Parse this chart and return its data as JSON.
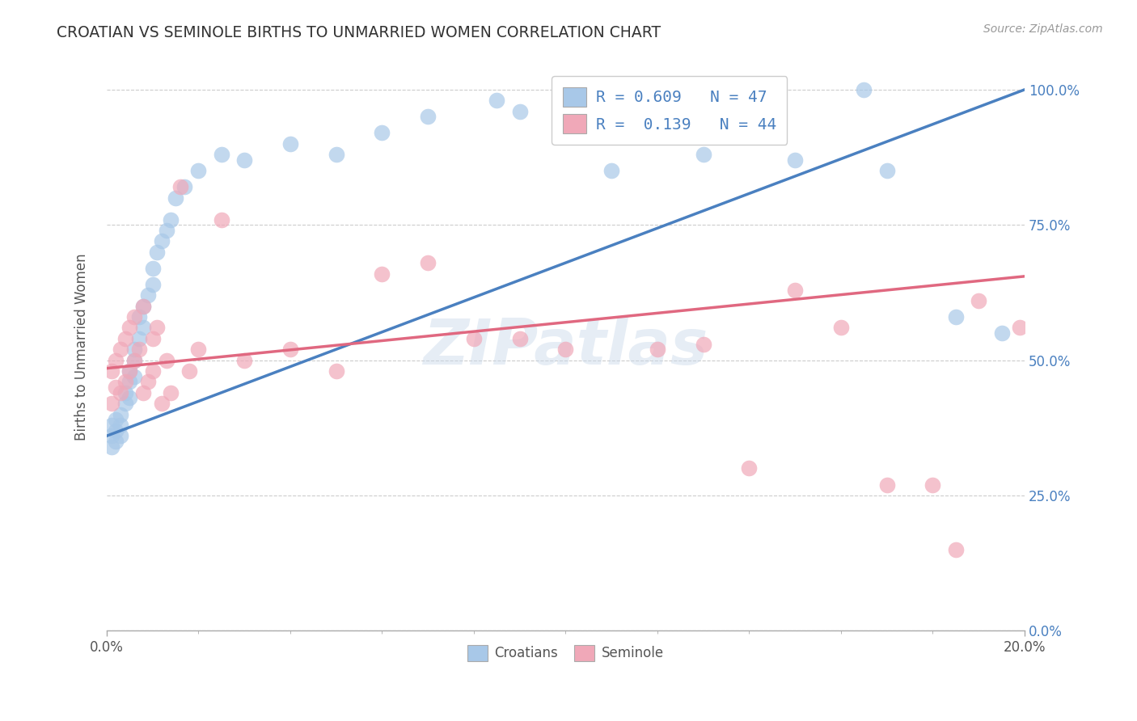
{
  "title": "CROATIAN VS SEMINOLE BIRTHS TO UNMARRIED WOMEN CORRELATION CHART",
  "source": "Source: ZipAtlas.com",
  "ylabel": "Births to Unmarried Women",
  "watermark": "ZIPatlas",
  "blue_color": "#a8c8e8",
  "pink_color": "#f0a8b8",
  "blue_line_color": "#4a80c0",
  "pink_line_color": "#e06880",
  "legend_text_color": "#4a80c0",
  "xlim": [
    0.0,
    0.2
  ],
  "ylim": [
    0.0,
    1.05
  ],
  "xtick_positions": [
    0.0,
    0.2
  ],
  "xtick_labels": [
    "0.0%",
    "20.0%"
  ],
  "ytick_positions": [
    0.0,
    0.25,
    0.5,
    0.75,
    1.0
  ],
  "ytick_labels": [
    "0.0%",
    "25.0%",
    "50.0%",
    "75.0%",
    "100.0%"
  ],
  "cr_x": [
    0.001,
    0.001,
    0.001,
    0.002,
    0.002,
    0.002,
    0.003,
    0.003,
    0.003,
    0.004,
    0.004,
    0.005,
    0.005,
    0.005,
    0.006,
    0.006,
    0.006,
    0.007,
    0.007,
    0.008,
    0.008,
    0.009,
    0.01,
    0.01,
    0.011,
    0.012,
    0.013,
    0.014,
    0.015,
    0.017,
    0.02,
    0.025,
    0.03,
    0.04,
    0.05,
    0.06,
    0.07,
    0.085,
    0.09,
    0.1,
    0.11,
    0.13,
    0.15,
    0.165,
    0.17,
    0.185,
    0.195
  ],
  "cr_y": [
    0.36,
    0.38,
    0.34,
    0.37,
    0.35,
    0.39,
    0.4,
    0.38,
    0.36,
    0.42,
    0.44,
    0.46,
    0.43,
    0.48,
    0.5,
    0.47,
    0.52,
    0.54,
    0.58,
    0.56,
    0.6,
    0.62,
    0.64,
    0.67,
    0.7,
    0.72,
    0.74,
    0.76,
    0.8,
    0.82,
    0.85,
    0.88,
    0.87,
    0.9,
    0.88,
    0.92,
    0.95,
    0.98,
    0.96,
    0.99,
    0.85,
    0.88,
    0.87,
    1.0,
    0.85,
    0.58,
    0.55
  ],
  "se_x": [
    0.001,
    0.001,
    0.002,
    0.002,
    0.003,
    0.003,
    0.004,
    0.004,
    0.005,
    0.005,
    0.006,
    0.006,
    0.007,
    0.008,
    0.008,
    0.009,
    0.01,
    0.01,
    0.011,
    0.012,
    0.013,
    0.014,
    0.016,
    0.018,
    0.02,
    0.025,
    0.03,
    0.04,
    0.05,
    0.06,
    0.07,
    0.08,
    0.09,
    0.1,
    0.12,
    0.13,
    0.14,
    0.15,
    0.16,
    0.17,
    0.18,
    0.185,
    0.19,
    0.199
  ],
  "se_y": [
    0.42,
    0.48,
    0.45,
    0.5,
    0.44,
    0.52,
    0.46,
    0.54,
    0.48,
    0.56,
    0.5,
    0.58,
    0.52,
    0.44,
    0.6,
    0.46,
    0.54,
    0.48,
    0.56,
    0.42,
    0.5,
    0.44,
    0.82,
    0.48,
    0.52,
    0.76,
    0.5,
    0.52,
    0.48,
    0.66,
    0.68,
    0.54,
    0.54,
    0.52,
    0.52,
    0.53,
    0.3,
    0.63,
    0.56,
    0.27,
    0.27,
    0.15,
    0.61,
    0.56
  ],
  "blue_line_x0": 0.0,
  "blue_line_x1": 0.2,
  "blue_line_y0": 0.36,
  "blue_line_y1": 1.0,
  "pink_line_x0": 0.0,
  "pink_line_x1": 0.2,
  "pink_line_y0": 0.485,
  "pink_line_y1": 0.655
}
